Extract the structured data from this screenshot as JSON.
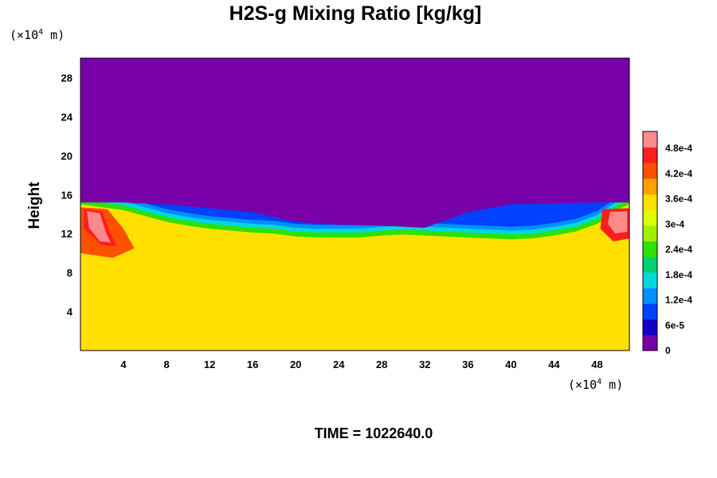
{
  "chart_data": {
    "type": "heatmap",
    "title": "H2S-g Mixing Ratio [kg/kg]",
    "xlabel": "",
    "ylabel": "Height",
    "x_unit": {
      "prefix": "(×10",
      "exponent": "4",
      "suffix": " m)"
    },
    "y_unit": {
      "prefix": "(×10",
      "exponent": "4",
      "suffix": " m)"
    },
    "xlim": [
      0,
      51
    ],
    "ylim": [
      0,
      30
    ],
    "x_ticks": [
      4,
      8,
      12,
      16,
      20,
      24,
      28,
      32,
      36,
      40,
      44,
      48
    ],
    "x_tick_labels": [
      "4",
      "8",
      "12",
      "16",
      "20",
      "24",
      "28",
      "32",
      "36",
      "40",
      "44",
      "48"
    ],
    "y_ticks": [
      4,
      8,
      12,
      16,
      20,
      24,
      28
    ],
    "y_tick_labels": [
      "4",
      "8",
      "12",
      "16",
      "20",
      "24",
      "28"
    ],
    "colorbar": {
      "range": [
        0,
        0.00052
      ],
      "ticks": [
        0,
        6e-05,
        0.00012,
        0.00018,
        0.00024,
        0.0003,
        0.00036,
        0.00042,
        0.00048
      ],
      "tick_labels": [
        "0",
        "6e-5",
        "1.2e-4",
        "1.8e-4",
        "2.4e-4",
        "3e-4",
        "3.6e-4",
        "4.2e-4",
        "4.8e-4"
      ],
      "colors": [
        "#7800a8",
        "#1400c8",
        "#0040ff",
        "#0090ff",
        "#00d8e0",
        "#00d070",
        "#30e000",
        "#a0f000",
        "#dcff00",
        "#ffe000",
        "#ffa000",
        "#ff5000",
        "#ff1e1e",
        "#ff8a8a"
      ]
    },
    "fields": {
      "upper_value": 0,
      "lower_value": 0.00035,
      "interface_height": [
        {
          "x": 0,
          "y": 15.0
        },
        {
          "x": 2,
          "y": 14.7
        },
        {
          "x": 4,
          "y": 14.4
        },
        {
          "x": 6,
          "y": 13.8
        },
        {
          "x": 8,
          "y": 13.2
        },
        {
          "x": 10,
          "y": 12.8
        },
        {
          "x": 12,
          "y": 12.5
        },
        {
          "x": 14,
          "y": 12.3
        },
        {
          "x": 16,
          "y": 12.1
        },
        {
          "x": 18,
          "y": 12.0
        },
        {
          "x": 20,
          "y": 11.7
        },
        {
          "x": 22,
          "y": 11.6
        },
        {
          "x": 24,
          "y": 11.6
        },
        {
          "x": 26,
          "y": 11.6
        },
        {
          "x": 28,
          "y": 11.8
        },
        {
          "x": 30,
          "y": 11.9
        },
        {
          "x": 32,
          "y": 11.8
        },
        {
          "x": 34,
          "y": 11.7
        },
        {
          "x": 36,
          "y": 11.6
        },
        {
          "x": 38,
          "y": 11.5
        },
        {
          "x": 40,
          "y": 11.4
        },
        {
          "x": 42,
          "y": 11.5
        },
        {
          "x": 44,
          "y": 11.8
        },
        {
          "x": 46,
          "y": 12.2
        },
        {
          "x": 48,
          "y": 13.0
        },
        {
          "x": 50,
          "y": 14.5
        },
        {
          "x": 51,
          "y": 15.0
        }
      ],
      "blue_layer_top": [
        {
          "x": 0,
          "y": 15.2
        },
        {
          "x": 4,
          "y": 15.2
        },
        {
          "x": 8,
          "y": 15.0
        },
        {
          "x": 12,
          "y": 14.6
        },
        {
          "x": 16,
          "y": 14.2
        },
        {
          "x": 20,
          "y": 13.2
        },
        {
          "x": 24,
          "y": 12.9
        },
        {
          "x": 28,
          "y": 12.8
        },
        {
          "x": 32,
          "y": 12.6
        },
        {
          "x": 36,
          "y": 14.2
        },
        {
          "x": 40,
          "y": 15.0
        },
        {
          "x": 44,
          "y": 15.1
        },
        {
          "x": 48,
          "y": 15.2
        },
        {
          "x": 51,
          "y": 15.2
        }
      ]
    }
  },
  "time_label": "TIME = 1022640.0"
}
